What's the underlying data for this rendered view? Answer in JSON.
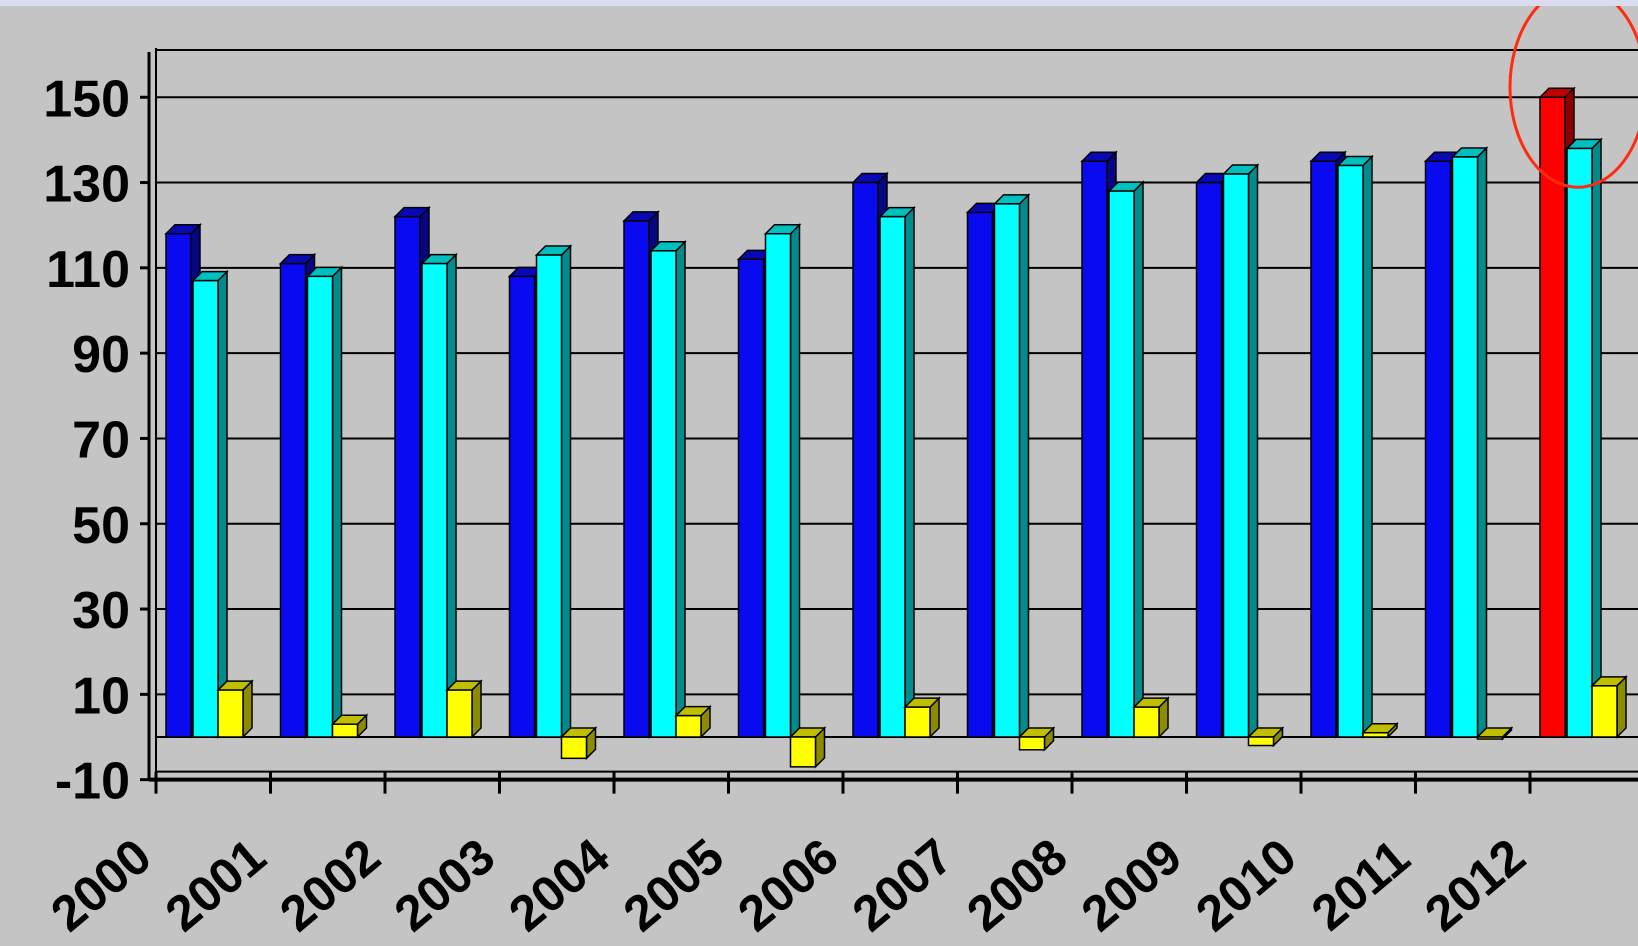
{
  "chart_data": {
    "type": "bar",
    "title": "",
    "xlabel": "",
    "ylabel": "",
    "ylim": [
      -10,
      160
    ],
    "yticks": [
      -10,
      10,
      30,
      50,
      70,
      90,
      110,
      130,
      150
    ],
    "grid": true,
    "legend": "none",
    "categories": [
      "2000",
      "2001",
      "2002",
      "2003",
      "2004",
      "2005",
      "2006",
      "2007",
      "2008",
      "2009",
      "2010",
      "2011",
      "2012"
    ],
    "series": [
      {
        "color": "#0a0af0",
        "values": [
          118,
          111,
          122,
          108,
          121,
          112,
          130,
          123,
          135,
          130,
          135,
          135,
          150
        ]
      },
      {
        "color": "#00ffff",
        "values": [
          107,
          108,
          111,
          113,
          114,
          118,
          122,
          125,
          128,
          132,
          134,
          136,
          138
        ]
      },
      {
        "color": "#ffff00",
        "values": [
          11,
          3,
          11,
          -5,
          5,
          -7,
          7,
          -3,
          7,
          -2,
          1,
          0,
          12
        ]
      }
    ],
    "highlight": {
      "category": "2012",
      "series_index": 0,
      "color": "#ff0000",
      "marker": "circle",
      "marker_color": "#ff2a10"
    }
  }
}
